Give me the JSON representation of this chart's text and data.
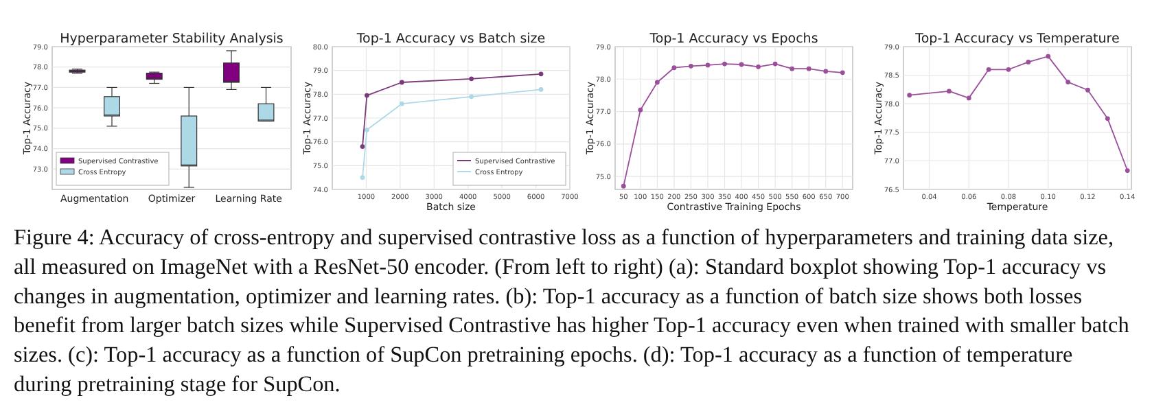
{
  "chart_data": [
    {
      "type": "box",
      "title": "Hyperparameter Stability Analysis",
      "ylabel": "Top-1 Accuracy",
      "categories": [
        "Augmentation",
        "Optimizer",
        "Learning Rate"
      ],
      "ylim": [
        72.0,
        79.0
      ],
      "yticks": [
        {
          "value": 73,
          "label": "73.0"
        },
        {
          "value": 74,
          "label": "74.0"
        },
        {
          "value": 75,
          "label": "75.0"
        },
        {
          "value": 76,
          "label": "76.0"
        },
        {
          "value": 77,
          "label": "77.0"
        },
        {
          "value": 78,
          "label": "78.0"
        },
        {
          "value": 79,
          "label": "79.0"
        }
      ],
      "grid": true,
      "legend": "bottom left",
      "series": [
        {
          "name": "Supervised Contrastive",
          "color": "#800080",
          "boxes": [
            {
              "low": 77.7,
              "q1": 77.75,
              "median": 77.8,
              "q3": 77.85,
              "high": 77.9
            },
            {
              "low": 77.2,
              "q1": 77.4,
              "median": 77.5,
              "q3": 77.7,
              "high": 77.75
            },
            {
              "low": 76.9,
              "q1": 77.25,
              "median": 77.3,
              "q3": 78.2,
              "high": 78.8
            }
          ]
        },
        {
          "name": "Cross Entropy",
          "color": "#add8e6",
          "boxes": [
            {
              "low": 75.1,
              "q1": 75.6,
              "median": 75.65,
              "q3": 76.55,
              "high": 77.0
            },
            {
              "low": 72.1,
              "q1": 73.15,
              "median": 73.2,
              "q3": 75.6,
              "high": 77.0
            },
            {
              "low": 75.35,
              "q1": 75.35,
              "median": 75.4,
              "q3": 76.2,
              "high": 77.0
            }
          ]
        }
      ],
      "annotations": [
        "Figure 4: Accuracy of cross-entropy and supervised contrastive loss as a function of hyperparameters and training data size, all measured on ImageNet with a ResNet-50 encoder. (From left to right) (a): Standard boxplot showing Top-1 accuracy vs changes in augmentation, optimizer and learning rates. (b): Top-1 accuracy as a function of batch size shows both losses benefit from larger batch sizes while Supervised Contrastive has higher Top-1 accuracy even when trained with smaller batch sizes. (c): Top-1 accuracy as a function of SupCon pretraining epochs. (d): Top-1 accuracy as a function of temperature during pretraining stage for SupCon."
      ]
    },
    {
      "type": "line",
      "title": "Top-1 Accuracy vs Batch size",
      "xlabel": "Batch size",
      "ylabel": "Top-1 Accuracy",
      "x": [
        890,
        1020,
        2050,
        4100,
        6150
      ],
      "xlim": [
        0,
        7000
      ],
      "xticks": [
        1000,
        2000,
        3000,
        4000,
        5000,
        6000,
        7000
      ],
      "ylim": [
        74,
        80
      ],
      "yticks": [
        {
          "value": 74,
          "label": "74.0"
        },
        {
          "value": 75,
          "label": "75.0"
        },
        {
          "value": 76,
          "label": "76.0"
        },
        {
          "value": 77,
          "label": "77.0"
        },
        {
          "value": 78,
          "label": "78.0"
        },
        {
          "value": 79,
          "label": "79.0"
        },
        {
          "value": 80,
          "label": "80.0"
        }
      ],
      "grid": true,
      "legend": "bottom right",
      "marker": "circle",
      "series": [
        {
          "name": "Supervised Contrastive",
          "color": "#7a3a7a",
          "values": [
            75.8,
            77.95,
            78.5,
            78.65,
            78.85
          ]
        },
        {
          "name": "Cross Entropy",
          "color": "#add8e6",
          "values": [
            74.5,
            76.5,
            77.6,
            77.9,
            78.2
          ]
        }
      ]
    },
    {
      "type": "line",
      "title": "Top-1 Accuracy vs Epochs",
      "xlabel": "Contrastive Training Epochs",
      "ylabel": "Top-1 Accuracy",
      "x": [
        50,
        100,
        150,
        200,
        250,
        300,
        350,
        400,
        450,
        500,
        550,
        600,
        650,
        700
      ],
      "xlim": [
        25,
        730
      ],
      "xticks": [
        50,
        100,
        150,
        200,
        250,
        300,
        350,
        400,
        450,
        500,
        550,
        600,
        650,
        700
      ],
      "ylim": [
        74.6,
        79
      ],
      "yticks": [
        {
          "value": 75,
          "label": "75.0"
        },
        {
          "value": 76,
          "label": "76.0"
        },
        {
          "value": 77,
          "label": "77.0"
        },
        {
          "value": 78,
          "label": "78.0"
        },
        {
          "value": 79,
          "label": "79.0"
        }
      ],
      "grid": true,
      "marker": "circle",
      "series": [
        {
          "color": "#9b4f9b",
          "values": [
            74.7,
            77.05,
            77.9,
            78.35,
            78.4,
            78.43,
            78.47,
            78.45,
            78.38,
            78.47,
            78.32,
            78.32,
            78.24,
            78.2
          ]
        }
      ]
    },
    {
      "type": "line",
      "title": "Top-1 Accuracy vs Temperature",
      "xlabel": "Temperature",
      "ylabel": "Top-1 Accuracy",
      "x": [
        0.03,
        0.05,
        0.06,
        0.07,
        0.08,
        0.09,
        0.1,
        0.11,
        0.12,
        0.13,
        0.14
      ],
      "xlim": [
        0.027,
        0.142
      ],
      "xticks": [
        {
          "value": 0.04,
          "label": "0.04"
        },
        {
          "value": 0.06,
          "label": "0.06"
        },
        {
          "value": 0.08,
          "label": "0.08"
        },
        {
          "value": 0.1,
          "label": "0.10"
        },
        {
          "value": 0.12,
          "label": "0.12"
        },
        {
          "value": 0.14,
          "label": "0.14"
        }
      ],
      "ylim": [
        76.5,
        79
      ],
      "yticks": [
        {
          "value": 76.5,
          "label": "76.5"
        },
        {
          "value": 77,
          "label": "77.0"
        },
        {
          "value": 77.5,
          "label": "77.5"
        },
        {
          "value": 78,
          "label": "78.0"
        },
        {
          "value": 78.5,
          "label": "78.5"
        },
        {
          "value": 79,
          "label": "79.0"
        }
      ],
      "grid": true,
      "marker": "circle",
      "series": [
        {
          "color": "#9b4f9b",
          "values": [
            78.15,
            78.22,
            78.1,
            78.6,
            78.6,
            78.73,
            78.83,
            78.38,
            78.24,
            77.74,
            76.83
          ]
        }
      ]
    }
  ]
}
